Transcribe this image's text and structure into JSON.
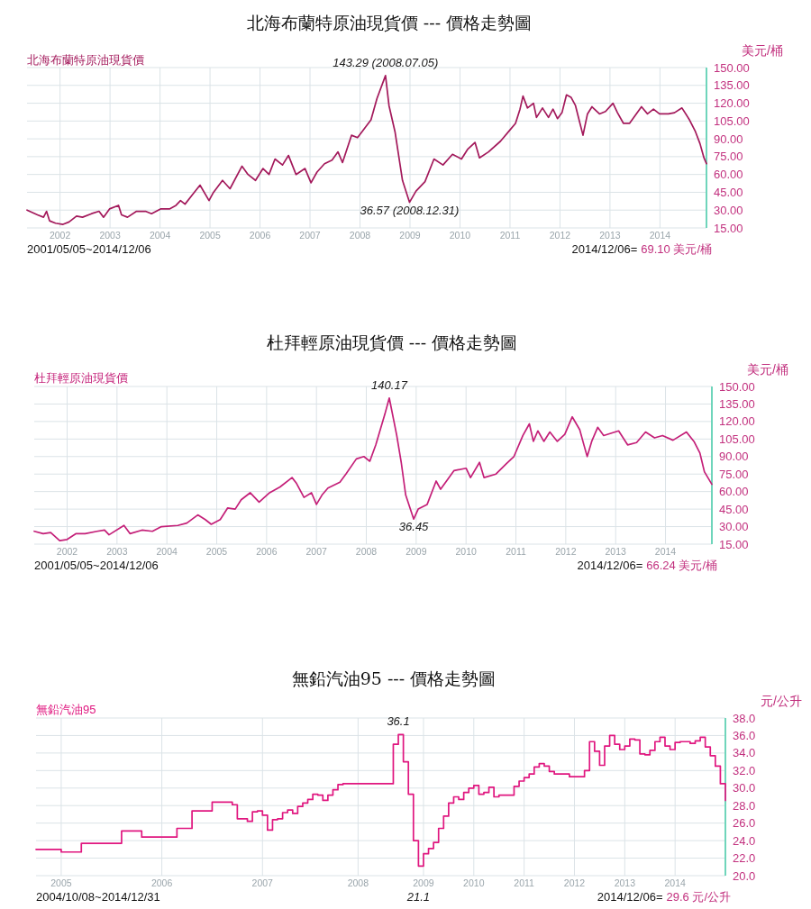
{
  "chart_data": [
    {
      "type": "line",
      "title": "北海布蘭特原油現貨價 --- 價格走勢圖",
      "ylabel": "美元/桶",
      "annotations": [
        "2001/05/05~2014/12/06",
        "2014/12/06=",
        "69.10 美元/桶",
        {
          "text": "143.29 (2008.07.05)",
          "x": 2008.51,
          "y": 143.29
        },
        {
          "text": "36.57 (2008.12.31)",
          "x": 2008.99,
          "y": 36.57
        }
      ],
      "x": [
        2001.34,
        2001.55,
        2001.67,
        2001.73,
        2001.79,
        2001.91,
        2002.06,
        2002.18,
        2002.33,
        2002.45,
        2002.63,
        2002.78,
        2002.87,
        2002.99,
        2003.17,
        2003.23,
        2003.35,
        2003.53,
        2003.71,
        2003.83,
        2004.01,
        2004.19,
        2004.32,
        2004.41,
        2004.5,
        2004.65,
        2004.8,
        2004.98,
        2005.07,
        2005.25,
        2005.4,
        2005.64,
        2005.76,
        2005.91,
        2006.06,
        2006.18,
        2006.3,
        2006.45,
        2006.57,
        2006.72,
        2006.9,
        2007.02,
        2007.14,
        2007.29,
        2007.44,
        2007.56,
        2007.65,
        2007.83,
        2007.95,
        2008.04,
        2008.22,
        2008.34,
        2008.51,
        2008.58,
        2008.7,
        2008.85,
        2008.99,
        2009.12,
        2009.3,
        2009.48,
        2009.66,
        2009.85,
        2010.03,
        2010.15,
        2010.3,
        2010.39,
        2010.57,
        2010.81,
        2010.99,
        2011.11,
        2011.2,
        2011.26,
        2011.35,
        2011.47,
        2011.53,
        2011.65,
        2011.77,
        2011.86,
        2011.95,
        2012.04,
        2012.13,
        2012.22,
        2012.31,
        2012.4,
        2012.46,
        2012.55,
        2012.64,
        2012.79,
        2012.91,
        2013.06,
        2013.15,
        2013.27,
        2013.39,
        2013.51,
        2013.63,
        2013.75,
        2013.87,
        2013.99,
        2014.17,
        2014.29,
        2014.44,
        2014.59,
        2014.71,
        2014.8,
        2014.88,
        2014.93
      ],
      "series": [
        {
          "name": "北海布蘭特原油現貨價",
          "color": "#a3195b",
          "values": [
            30,
            26,
            24,
            29,
            21,
            19,
            18,
            20,
            25,
            24,
            27,
            29,
            24,
            31,
            34,
            26,
            24,
            29,
            29,
            27,
            31,
            31,
            34,
            38,
            35,
            43,
            51,
            38,
            45,
            55,
            48,
            67,
            60,
            55,
            65,
            60,
            73,
            68,
            76,
            60,
            65,
            53,
            62,
            69,
            72,
            79,
            70,
            93,
            91,
            96,
            106,
            124,
            143.29,
            118,
            96,
            55,
            36.57,
            46,
            54,
            73,
            68,
            77,
            73,
            81,
            87,
            74,
            79,
            88,
            97,
            103,
            115,
            126,
            116,
            120,
            108,
            116,
            108,
            115,
            107,
            112,
            127,
            125,
            118,
            103,
            93,
            111,
            117,
            111,
            113,
            120,
            112,
            103,
            103,
            110,
            117,
            111,
            115,
            111,
            111,
            112,
            116,
            106,
            96,
            86,
            74,
            69.1
          ]
        }
      ],
      "xlim": [
        2001.34,
        2014.93
      ],
      "xticks": [
        2002,
        2003,
        2004,
        2005,
        2006,
        2007,
        2008,
        2009,
        2010,
        2011,
        2012,
        2013,
        2014
      ],
      "ylim": [
        15,
        150
      ],
      "yticks": [
        {
          "value": 15,
          "label": "15.00"
        },
        {
          "value": 30,
          "label": "30.00"
        },
        {
          "value": 45,
          "label": "45.00"
        },
        {
          "value": 60,
          "label": "60.00"
        },
        {
          "value": 75,
          "label": "75.00"
        },
        {
          "value": 90,
          "label": "90.00"
        },
        {
          "value": 105,
          "label": "105.00"
        },
        {
          "value": 120,
          "label": "120.00"
        },
        {
          "value": 135,
          "label": "135.00"
        },
        {
          "value": 150,
          "label": "150.00"
        }
      ],
      "grid": true
    },
    {
      "type": "line",
      "title": "杜拜輕原油現貨價 --- 價格走勢圖",
      "ylabel": "美元/桶",
      "annotations": [
        "2001/05/05~2014/12/06",
        "2014/12/06=",
        "66.24 美元/桶",
        {
          "text": "140.17",
          "x": 2008.46,
          "y": 140.17
        },
        {
          "text": "36.45",
          "x": 2008.95,
          "y": 36.45
        }
      ],
      "x": [
        2001.34,
        2001.52,
        2001.67,
        2001.85,
        2002.0,
        2002.18,
        2002.36,
        2002.6,
        2002.75,
        2002.84,
        2003.14,
        2003.26,
        2003.5,
        2003.71,
        2003.89,
        2004.22,
        2004.4,
        2004.62,
        2004.77,
        2004.89,
        2005.07,
        2005.22,
        2005.37,
        2005.49,
        2005.67,
        2005.85,
        2006.06,
        2006.27,
        2006.51,
        2006.6,
        2006.75,
        2006.9,
        2007.0,
        2007.11,
        2007.23,
        2007.47,
        2007.59,
        2007.8,
        2007.95,
        2008.07,
        2008.19,
        2008.37,
        2008.46,
        2008.55,
        2008.61,
        2008.7,
        2008.79,
        2008.95,
        2009.04,
        2009.22,
        2009.4,
        2009.49,
        2009.64,
        2009.76,
        2010.0,
        2010.09,
        2010.27,
        2010.36,
        2010.6,
        2010.81,
        2010.96,
        2011.14,
        2011.27,
        2011.35,
        2011.44,
        2011.56,
        2011.68,
        2011.83,
        2011.98,
        2012.13,
        2012.28,
        2012.37,
        2012.43,
        2012.52,
        2012.64,
        2012.76,
        2013.06,
        2013.24,
        2013.42,
        2013.6,
        2013.78,
        2013.94,
        2014.15,
        2014.42,
        2014.57,
        2014.69,
        2014.78,
        2014.93
      ],
      "series": [
        {
          "name": "杜拜輕原油現貨價",
          "color": "#c41f78",
          "values": [
            26,
            24,
            25,
            18,
            19,
            24,
            24,
            26,
            27,
            23,
            31,
            24,
            27,
            26,
            30,
            31,
            33,
            40,
            36,
            32,
            36,
            46,
            45,
            53,
            59,
            51,
            59,
            64,
            72,
            67,
            55,
            59,
            49,
            57,
            63,
            68,
            75,
            88,
            90,
            86,
            100,
            126,
            140.17,
            121,
            108,
            85,
            57,
            36.45,
            45,
            49,
            69,
            62,
            71,
            78,
            80,
            72,
            85,
            72,
            75,
            84,
            90,
            108,
            118,
            103,
            112,
            103,
            111,
            103,
            109,
            124,
            113,
            99,
            90,
            103,
            115,
            108,
            112,
            100,
            102,
            111,
            106,
            108,
            104,
            111,
            103,
            93,
            77,
            66.24
          ]
        }
      ],
      "xlim": [
        2001.34,
        2014.93
      ],
      "xticks": [
        2002,
        2003,
        2004,
        2005,
        2006,
        2007,
        2008,
        2009,
        2010,
        2011,
        2012,
        2013,
        2014
      ],
      "ylim": [
        15,
        150
      ],
      "yticks": [
        {
          "value": 15,
          "label": "15.00"
        },
        {
          "value": 30,
          "label": "30.00"
        },
        {
          "value": 45,
          "label": "45.00"
        },
        {
          "value": 60,
          "label": "60.00"
        },
        {
          "value": 75,
          "label": "75.00"
        },
        {
          "value": 90,
          "label": "90.00"
        },
        {
          "value": 105,
          "label": "105.00"
        },
        {
          "value": 120,
          "label": "120.00"
        },
        {
          "value": 135,
          "label": "135.00"
        },
        {
          "value": 150,
          "label": "150.00"
        }
      ],
      "grid": true
    },
    {
      "type": "step",
      "title": "無鉛汽油95 --- 價格走勢圖",
      "ylabel": "元/公升",
      "annotations": [
        "2004/10/08~2014/12/31",
        "2014/12/06=",
        "29.6 元/公升",
        {
          "text": "36.1",
          "y": 36.1
        },
        {
          "text": "21.1",
          "y": 21.1
        }
      ],
      "categories": [
        null,
        null,
        null,
        null,
        null,
        "2005",
        null,
        null,
        null,
        null,
        null,
        null,
        null,
        null,
        null,
        null,
        null,
        null,
        null,
        null,
        null,
        null,
        null,
        null,
        null,
        "2006",
        null,
        null,
        null,
        null,
        null,
        null,
        null,
        null,
        null,
        null,
        null,
        null,
        null,
        null,
        null,
        null,
        null,
        null,
        null,
        "2007",
        null,
        null,
        null,
        null,
        null,
        null,
        null,
        null,
        null,
        null,
        null,
        null,
        null,
        null,
        null,
        null,
        null,
        null,
        "2008",
        null,
        null,
        null,
        null,
        null,
        null,
        null,
        null,
        null,
        null,
        null,
        null,
        "2009",
        null,
        null,
        null,
        null,
        null,
        null,
        null,
        null,
        null,
        "2010",
        null,
        null,
        null,
        null,
        null,
        null,
        null,
        null,
        null,
        "2011",
        null,
        null,
        null,
        null,
        null,
        null,
        null,
        null,
        null,
        "2012",
        null,
        null,
        null,
        null,
        null,
        null,
        null,
        null,
        null,
        "2013",
        null,
        null,
        null,
        null,
        null,
        null,
        null,
        null,
        null,
        "2014",
        null,
        null,
        null,
        null,
        null,
        null,
        null,
        null,
        null,
        null
      ],
      "series": [
        {
          "name": "無鉛汽油95",
          "color": "#e0167f",
          "values": [
            23.0,
            23.0,
            23.0,
            23.0,
            23.0,
            22.7,
            22.7,
            22.7,
            22.7,
            23.7,
            23.7,
            23.7,
            23.7,
            23.7,
            23.7,
            23.7,
            23.7,
            25.1,
            25.1,
            25.1,
            25.1,
            24.4,
            24.4,
            24.4,
            24.4,
            24.4,
            24.4,
            24.4,
            25.4,
            25.4,
            25.4,
            27.4,
            27.4,
            27.4,
            27.4,
            28.4,
            28.4,
            28.4,
            28.4,
            28.1,
            26.5,
            26.5,
            26.2,
            27.3,
            27.4,
            26.9,
            25.2,
            26.4,
            26.5,
            27.2,
            27.5,
            27.1,
            27.9,
            28.3,
            28.7,
            29.3,
            29.2,
            28.6,
            29.2,
            29.8,
            30.4,
            30.5,
            30.5,
            30.5,
            30.5,
            30.5,
            30.5,
            30.5,
            30.5,
            30.5,
            30.5,
            35.0,
            36.1,
            33.0,
            29.3,
            24.0,
            21.1,
            22.5,
            23.1,
            23.8,
            25.4,
            26.8,
            28.3,
            29.0,
            28.7,
            29.5,
            30.0,
            30.3,
            29.3,
            29.5,
            30.1,
            29.0,
            29.2,
            29.2,
            29.2,
            30.2,
            30.8,
            31.2,
            31.6,
            32.4,
            32.8,
            32.5,
            31.9,
            31.6,
            31.6,
            31.6,
            31.3,
            31.3,
            31.3,
            32.0,
            35.3,
            34.2,
            32.6,
            34.8,
            36.0,
            35.0,
            34.4,
            34.8,
            35.6,
            35.5,
            33.9,
            33.8,
            34.3,
            35.3,
            35.8,
            34.8,
            34.4,
            35.2,
            35.3,
            35.3,
            35.1,
            35.4,
            35.8,
            34.7,
            33.7,
            32.5,
            30.5,
            28.6
          ]
        }
      ],
      "ylim": [
        20,
        38
      ],
      "yticks": [
        {
          "value": 20,
          "label": "20.0"
        },
        {
          "value": 22,
          "label": "22.0"
        },
        {
          "value": 24,
          "label": "24.0"
        },
        {
          "value": 26,
          "label": "26.0"
        },
        {
          "value": 28,
          "label": "28.0"
        },
        {
          "value": 30,
          "label": "30.0"
        },
        {
          "value": 32,
          "label": "32.0"
        },
        {
          "value": 34,
          "label": "34.0"
        },
        {
          "value": 36,
          "label": "36.0"
        },
        {
          "value": 38,
          "label": "38.0"
        }
      ],
      "grid": true
    }
  ]
}
